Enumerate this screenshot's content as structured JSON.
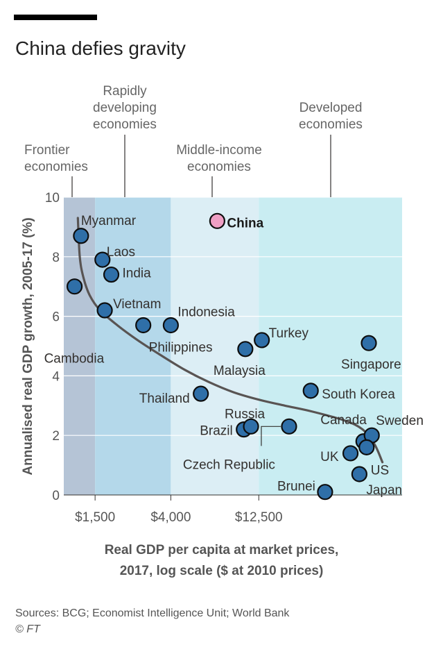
{
  "title": "China defies gravity",
  "source": "Sources: BCG; Economist Intelligence Unit; World Bank",
  "credit": "© FT",
  "colors": {
    "zone_frontier": "#b5c4d6",
    "zone_rapid": "#b4d8ea",
    "zone_middle": "#dceef5",
    "zone_developed": "#c9edf2",
    "dot": "#2f6fa8",
    "dot_highlight": "#ef9fc4",
    "curve": "#595453"
  },
  "chart_data": {
    "type": "scatter",
    "xlabel": [
      "Real GDP per capita at market prices,",
      "2017, log scale ($ at 2010 prices)"
    ],
    "ylabel": "Annualised real GDP growth, 2005-17 (%)",
    "x_scale": "log",
    "x_ticks": [
      {
        "value": 1500,
        "label": "$1,500"
      },
      {
        "value": 4000,
        "label": "$4,000"
      },
      {
        "value": 12500,
        "label": "$12,500"
      }
    ],
    "y_ticks": [
      0,
      2,
      4,
      6,
      8,
      10
    ],
    "ylim": [
      0,
      10
    ],
    "xlim": [
      1000,
      80000
    ],
    "grid": true,
    "zones": [
      {
        "label": [
          "Frontier",
          "economies"
        ],
        "from": 1000,
        "to": 1500,
        "color_key": "zone_frontier"
      },
      {
        "label": [
          "Rapidly",
          "developing",
          "economies"
        ],
        "from": 1500,
        "to": 4000,
        "color_key": "zone_rapid"
      },
      {
        "label": [
          "Middle-income",
          "economies"
        ],
        "from": 4000,
        "to": 12500,
        "color_key": "zone_middle"
      },
      {
        "label": [
          "Developed",
          "economies"
        ],
        "from": 12500,
        "to": 80000,
        "color_key": "zone_developed"
      }
    ],
    "points": [
      {
        "label": "Myanmar",
        "x": 1250,
        "y": 8.7
      },
      {
        "label": "Laos",
        "x": 1650,
        "y": 7.9
      },
      {
        "label": "India",
        "x": 1850,
        "y": 7.4
      },
      {
        "label": "Cambodia",
        "x": 1150,
        "y": 7.0
      },
      {
        "label": "Vietnam",
        "x": 1700,
        "y": 6.2
      },
      {
        "label": "Philippines",
        "x": 2800,
        "y": 5.7
      },
      {
        "label": "Indonesia",
        "x": 4000,
        "y": 5.7
      },
      {
        "label": "China",
        "x": 7300,
        "y": 9.2,
        "highlight": true
      },
      {
        "label": "Thailand",
        "x": 5900,
        "y": 3.4
      },
      {
        "label": "Malaysia",
        "x": 10500,
        "y": 4.9
      },
      {
        "label": "Turkey",
        "x": 13000,
        "y": 5.2
      },
      {
        "label": "Brazil",
        "x": 10300,
        "y": 2.2
      },
      {
        "label": "Russia",
        "x": 11300,
        "y": 2.3
      },
      {
        "label": "Czech Republic",
        "x": 18500,
        "y": 2.3
      },
      {
        "label": "South Korea",
        "x": 24500,
        "y": 3.5
      },
      {
        "label": "Singapore",
        "x": 52000,
        "y": 5.1
      },
      {
        "label": "Canada",
        "x": 48500,
        "y": 1.8
      },
      {
        "label": "Sweden",
        "x": 54000,
        "y": 2.0
      },
      {
        "label": "US",
        "x": 50500,
        "y": 1.6
      },
      {
        "label": "UK",
        "x": 41000,
        "y": 1.4
      },
      {
        "label": "Japan",
        "x": 46000,
        "y": 0.7
      },
      {
        "label": "Brunei",
        "x": 29500,
        "y": 0.1
      }
    ],
    "trend_curve": [
      [
        1200,
        9.3
      ],
      [
        1230,
        8.0
      ],
      [
        1290,
        7.3
      ],
      [
        1400,
        6.7
      ],
      [
        1600,
        6.2
      ],
      [
        2000,
        5.7
      ],
      [
        2600,
        5.2
      ],
      [
        3500,
        4.7
      ],
      [
        4800,
        4.2
      ],
      [
        6500,
        3.8
      ],
      [
        9000,
        3.45
      ],
      [
        12500,
        3.2
      ],
      [
        17500,
        3.0
      ],
      [
        25000,
        2.8
      ],
      [
        38000,
        2.5
      ],
      [
        48000,
        2.2
      ],
      [
        56000,
        1.7
      ],
      [
        62000,
        1.1
      ]
    ]
  }
}
